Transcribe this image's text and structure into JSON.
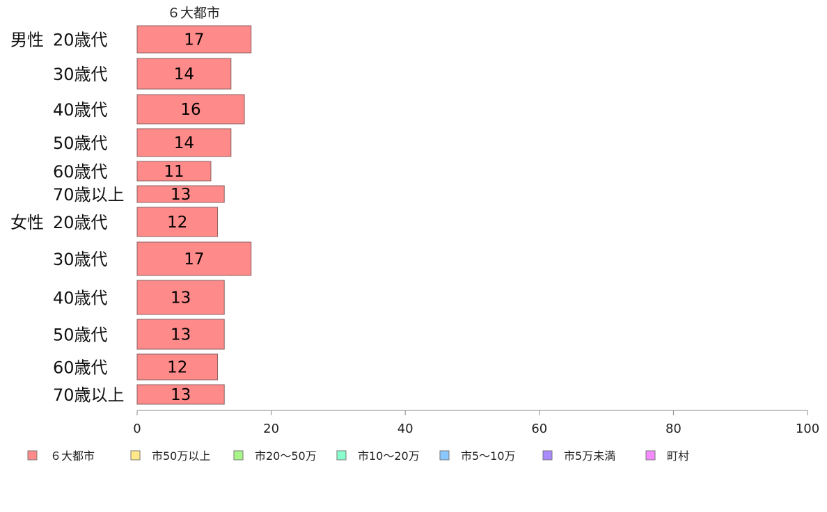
{
  "chart_data": {
    "type": "bar",
    "orientation": "horizontal",
    "series_title": "６大都市",
    "groups": [
      {
        "label": "男性",
        "categories": [
          "20歳代",
          "30歳代",
          "40歳代",
          "50歳代",
          "60歳代",
          "70歳以上"
        ],
        "values": [
          17,
          14,
          16,
          14,
          11,
          13
        ]
      },
      {
        "label": "女性",
        "categories": [
          "20歳代",
          "30歳代",
          "40歳代",
          "50歳代",
          "60歳代",
          "70歳以上"
        ],
        "values": [
          12,
          17,
          13,
          13,
          12,
          13
        ]
      }
    ],
    "series": [
      {
        "name": "６大都市",
        "color": "#ff8a8a"
      }
    ],
    "xlim": [
      0,
      100
    ],
    "xticks": [
      0,
      20,
      40,
      60,
      80,
      100
    ],
    "grid": false,
    "legend": {
      "placement": "bottom",
      "entries": [
        {
          "label": "６大都市",
          "color": "#ff8a8a"
        },
        {
          "label": "市50万以上",
          "color": "#ffe98a"
        },
        {
          "label": "市20〜50万",
          "color": "#a8f58a"
        },
        {
          "label": "市10〜20万",
          "color": "#8affce"
        },
        {
          "label": "市5〜10万",
          "color": "#8ac8ff"
        },
        {
          "label": "市5万未満",
          "color": "#a98aff"
        },
        {
          "label": "町村",
          "color": "#f48aff"
        }
      ]
    }
  }
}
